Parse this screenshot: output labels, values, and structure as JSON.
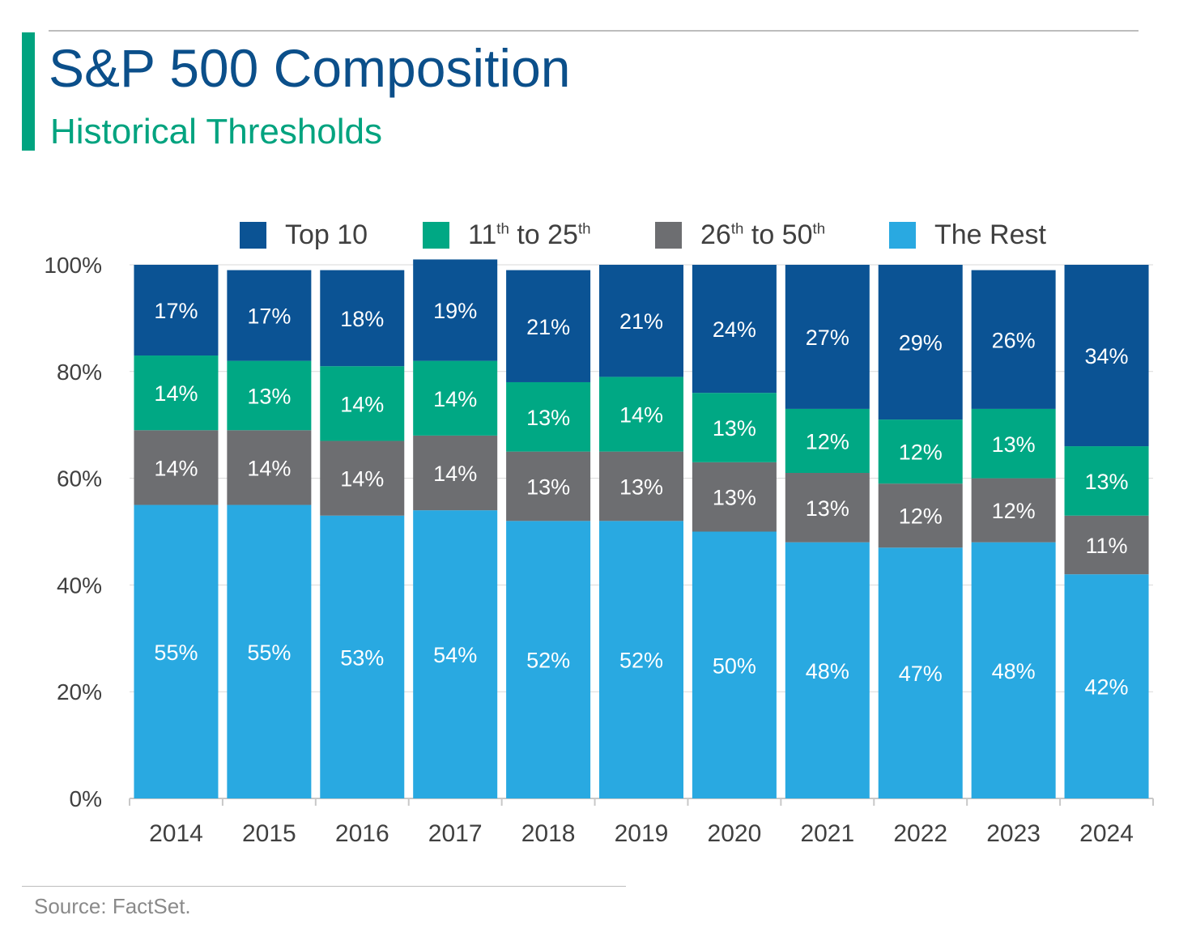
{
  "header": {
    "title": "S&P 500 Composition",
    "subtitle": "Historical Thresholds"
  },
  "legend": [
    {
      "main": "Top 10",
      "parts": [],
      "color": "#0b5394"
    },
    {
      "main": "",
      "parts": [
        "11",
        "th",
        " to 25",
        "th"
      ],
      "color": "#00a884"
    },
    {
      "main": "",
      "parts": [
        "26",
        "th",
        " to 50",
        "th"
      ],
      "color": "#6d6e71"
    },
    {
      "main": "The Rest",
      "parts": [],
      "color": "#29a9e1"
    }
  ],
  "footer": {
    "source": "Source: FactSet."
  },
  "chart_data": {
    "type": "bar",
    "stacked": true,
    "categories": [
      "2014",
      "2015",
      "2016",
      "2017",
      "2018",
      "2019",
      "2020",
      "2021",
      "2022",
      "2023",
      "2024"
    ],
    "series": [
      {
        "name": "The Rest",
        "color": "#29a9e1",
        "values": [
          55,
          55,
          53,
          54,
          52,
          52,
          50,
          48,
          47,
          48,
          42
        ]
      },
      {
        "name": "26th to 50th",
        "color": "#6d6e71",
        "values": [
          14,
          14,
          14,
          14,
          13,
          13,
          13,
          13,
          12,
          12,
          11
        ]
      },
      {
        "name": "11th to 25th",
        "color": "#00a884",
        "values": [
          14,
          13,
          14,
          14,
          13,
          14,
          13,
          12,
          12,
          13,
          13
        ]
      },
      {
        "name": "Top 10",
        "color": "#0b5394",
        "values": [
          17,
          17,
          18,
          19,
          21,
          21,
          24,
          27,
          29,
          26,
          34
        ]
      }
    ],
    "ylim": [
      0,
      100
    ],
    "yticks": [
      "0%",
      "20%",
      "40%",
      "60%",
      "80%",
      "100%"
    ],
    "grid": true,
    "legend_position": "top"
  }
}
